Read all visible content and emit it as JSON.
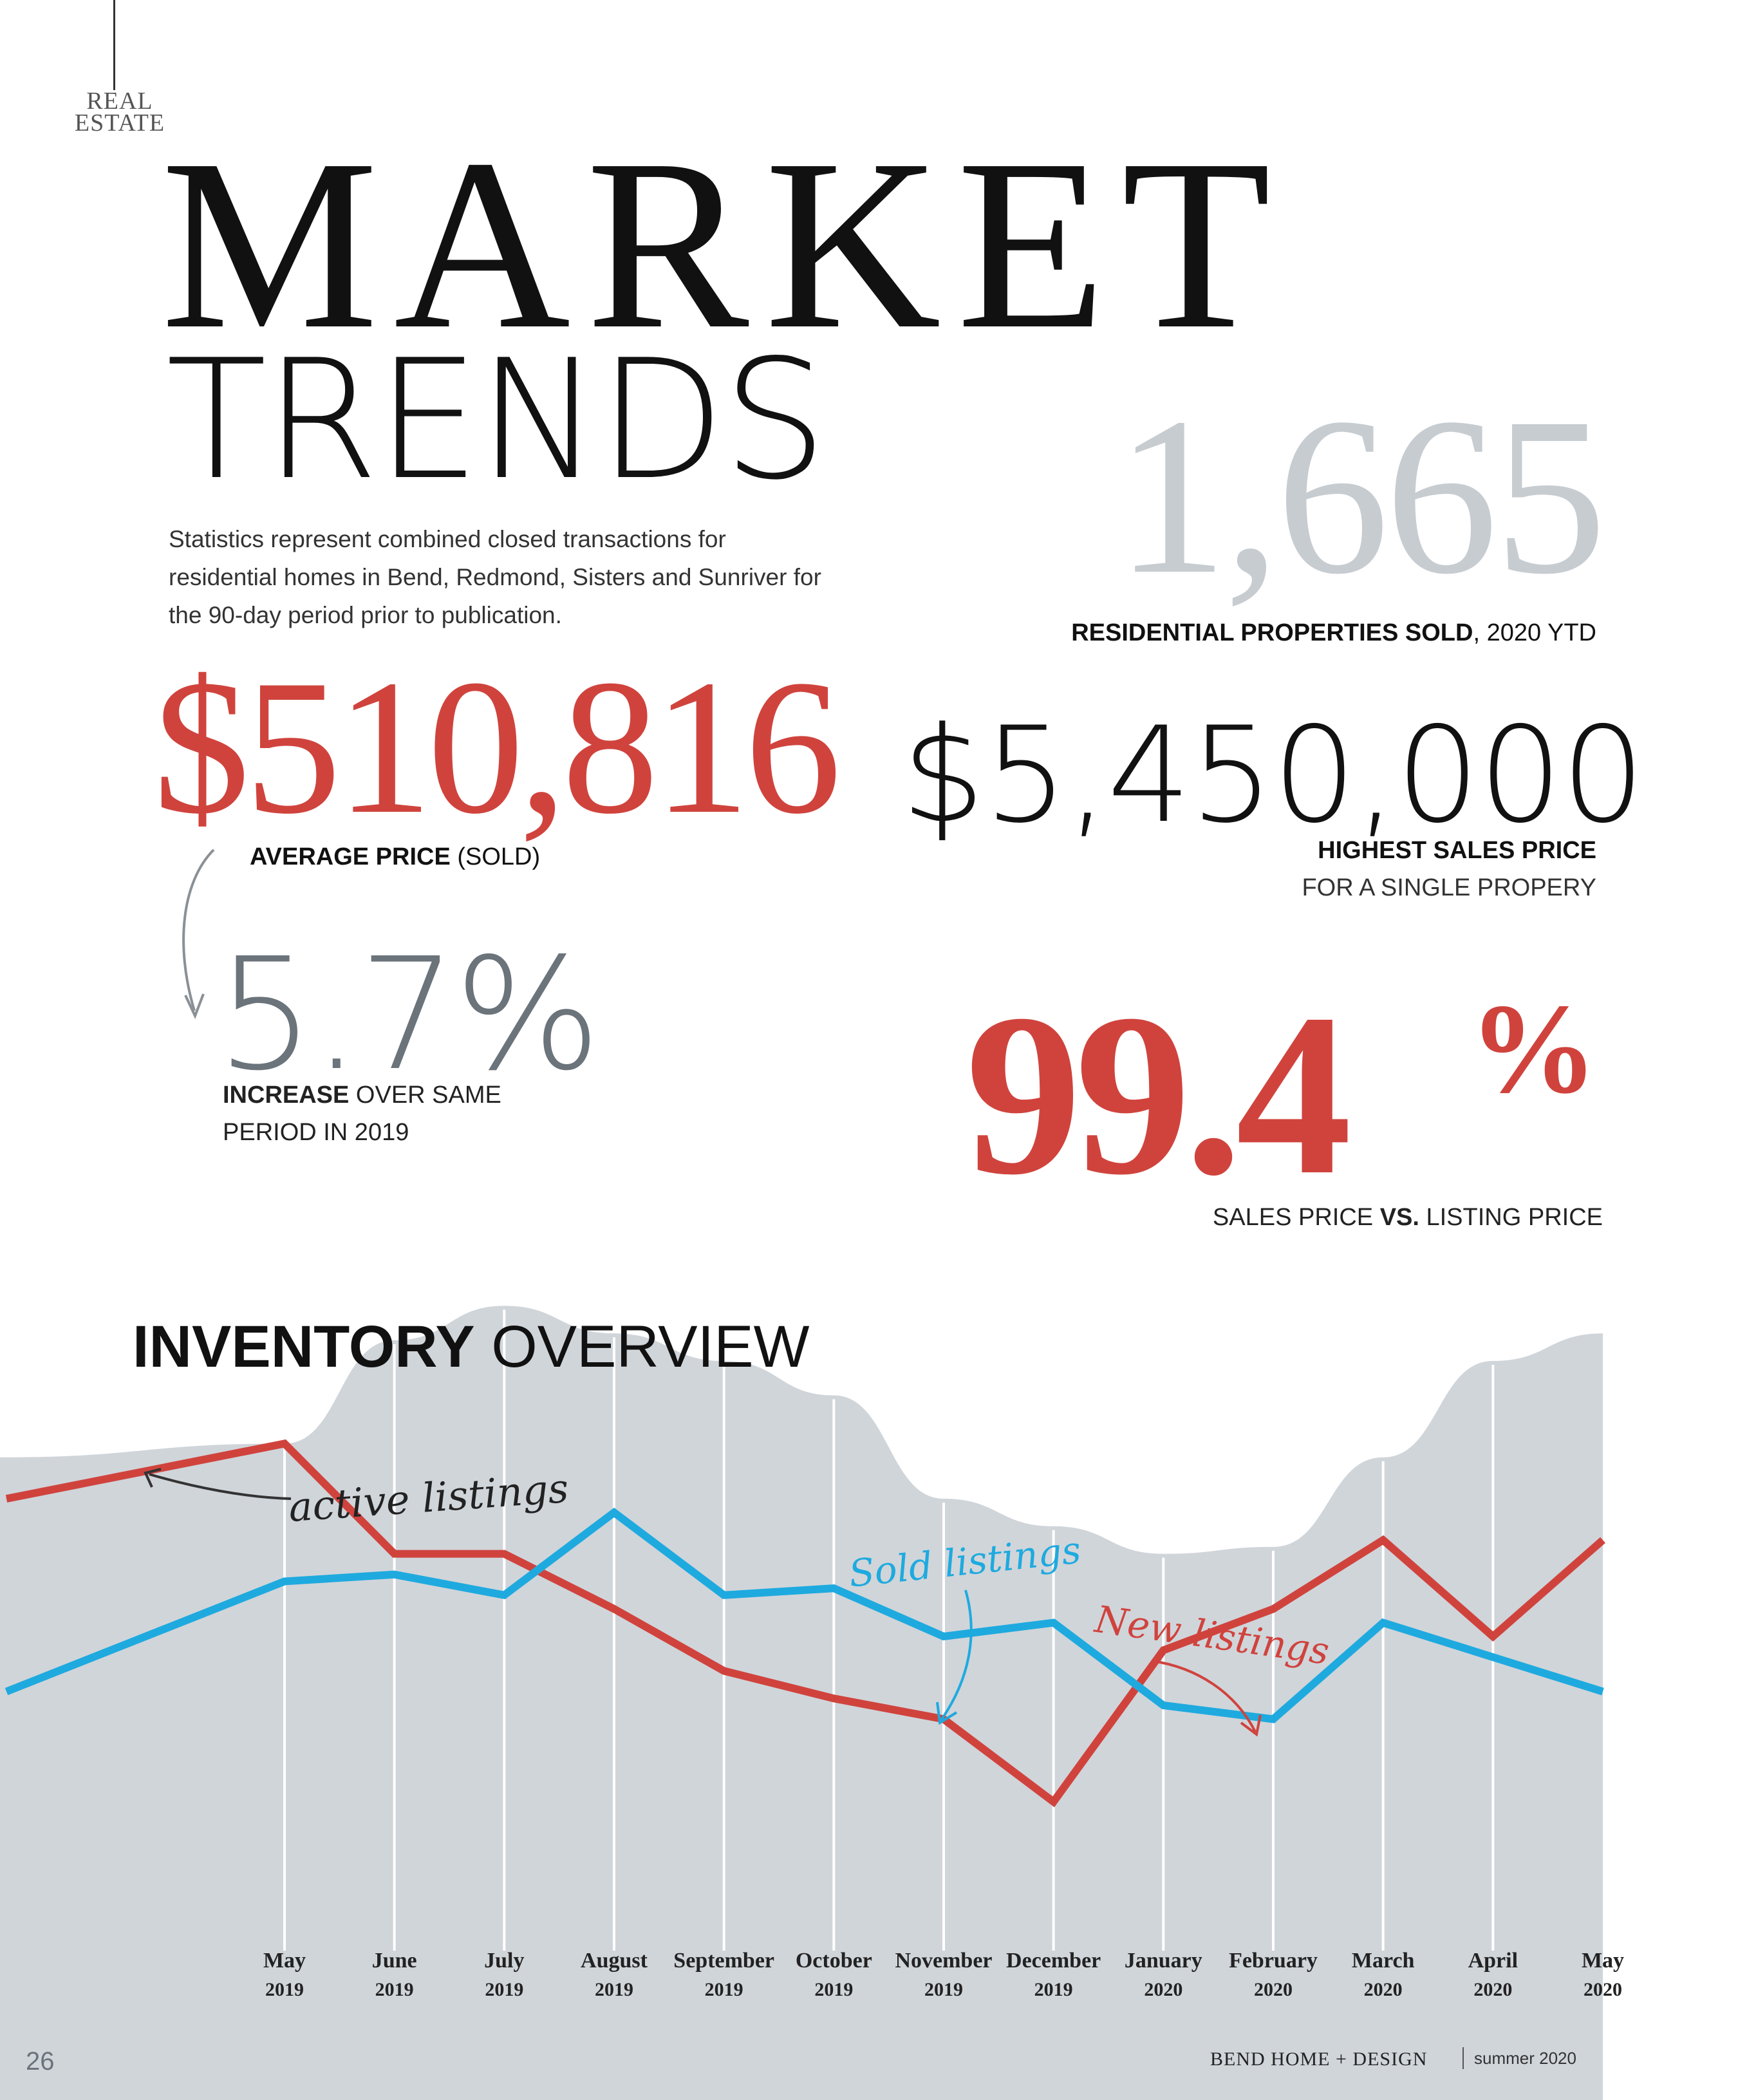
{
  "header": {
    "section_line1": "REAL",
    "section_line2": "ESTATE",
    "title_top": "MARKET",
    "title_bottom": "TRENDS",
    "intro": "Statistics represent combined closed transactions for residential homes in Bend, Redmond, Sisters and Sunriver for the 90-day period prior to publication."
  },
  "stats": {
    "sold_count": "1,665",
    "sold_label_bold": "RESIDENTIAL PROPERTIES SOLD",
    "sold_label_rest": ", 2020 YTD",
    "avg_price": "$510,816",
    "avg_label_bold": "AVERAGE PRICE",
    "avg_label_rest": " (SOLD)",
    "high_price": "$5,450,000",
    "high_label_bold": "HIGHEST SALES PRICE",
    "high_label_rest": "FOR A SINGLE PROPERY",
    "inc_pct": "5.7%",
    "inc_label_bold": "INCREASE",
    "inc_label_rest": " OVER SAME PERIOD IN 2019",
    "sales_pct": "99.4",
    "sales_pct_symbol": "%",
    "sales_label_a": "SALES PRICE ",
    "sales_label_bold": "VS.",
    "sales_label_b": " LISTING PRICE"
  },
  "inventory": {
    "title_bold": "INVENTORY",
    "title_rest": " OVERVIEW",
    "annotation_active": "active listings",
    "annotation_sold": "Sold listings",
    "annotation_new": "New listings"
  },
  "footer": {
    "page_number": "26",
    "publication": "BEND HOME + DESIGN",
    "issue": "summer 2020"
  },
  "colors": {
    "accent_red": "#d0433d",
    "sold_blue": "#1eaadf",
    "area_gray": "#d0d5da",
    "muted_gray": "#c7ccd1"
  },
  "chart_data": {
    "type": "line",
    "categories": [
      "May 2019",
      "June 2019",
      "July 2019",
      "August 2019",
      "September 2019",
      "October 2019",
      "November 2019",
      "December 2019",
      "January 2020",
      "February 2020",
      "March 2020",
      "April 2020",
      "May 2020"
    ],
    "category_months": [
      "May",
      "June",
      "July",
      "August",
      "September",
      "October",
      "November",
      "December",
      "January",
      "February",
      "March",
      "April",
      "May"
    ],
    "category_years": [
      "2019",
      "2019",
      "2019",
      "2019",
      "2019",
      "2019",
      "2019",
      "2019",
      "2020",
      "2020",
      "2020",
      "2020",
      "2020"
    ],
    "series": [
      {
        "name": "active listings",
        "type": "area",
        "color": "#d0d5da",
        "values": [
          68,
          83,
          88,
          84,
          80,
          75,
          60,
          56,
          52,
          53,
          66,
          80,
          84
        ]
      },
      {
        "name": "New listings",
        "color": "#d0433d",
        "values": [
          68,
          52,
          52,
          44,
          35,
          31,
          28,
          16,
          38,
          44,
          54,
          40,
          54
        ]
      },
      {
        "name": "Sold listings",
        "color": "#1eaadf",
        "values": [
          48,
          49,
          46,
          58,
          46,
          47,
          40,
          42,
          30,
          28,
          42,
          37,
          32
        ]
      }
    ],
    "ylim": [
      0,
      100
    ],
    "grid": "vertical",
    "legend": "annotations"
  }
}
